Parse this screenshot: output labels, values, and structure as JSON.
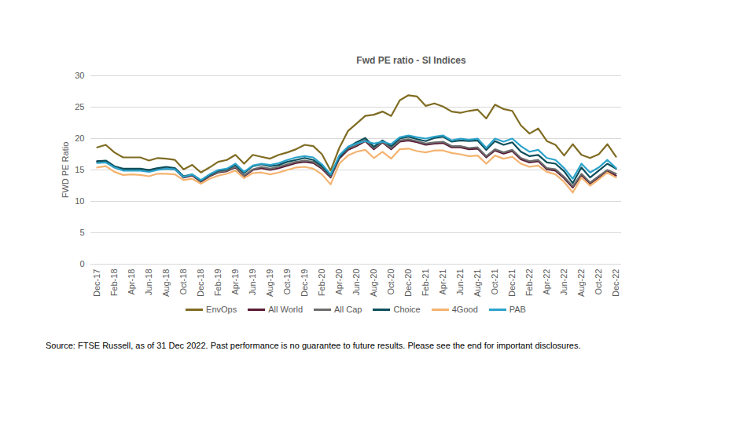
{
  "chart_data": {
    "type": "line",
    "title": "Fwd PE ratio - SI Indices",
    "y_label": "FWD PE Ratio",
    "caption": "Source: FTSE Russell, as of 31 Dec 2022. Past performance is no guarantee to future results. Please see the end for important disclosures.",
    "categories": [
      "Dec-17",
      null,
      "Feb-18",
      null,
      "Apr-18",
      null,
      "Jun-18",
      null,
      "Aug-18",
      null,
      "Oct-18",
      null,
      "Dec-18",
      null,
      "Feb-19",
      null,
      "Apr-19",
      null,
      "Jun-19",
      null,
      "Aug-19",
      null,
      "Oct-19",
      null,
      "Dec-19",
      null,
      "Feb-20",
      null,
      "Apr-20",
      null,
      "Jun-20",
      null,
      "Aug-20",
      null,
      "Oct-20",
      null,
      "Dec-20",
      null,
      "Feb-21",
      null,
      "Apr-21",
      null,
      "Jun-21",
      null,
      "Aug-21",
      null,
      "Oct-21",
      null,
      "Dec-21",
      null,
      "Feb-22",
      null,
      "Apr-22",
      null,
      "Jun-22",
      null,
      "Aug-22",
      null,
      "Oct-22",
      null,
      "Dec-22"
    ],
    "series": [
      {
        "name": "EnvOps",
        "color": "#7f6c22",
        "values": [
          18.6,
          19.0,
          17.8,
          17.0,
          17.0,
          17.0,
          16.5,
          16.9,
          16.8,
          16.6,
          15.1,
          15.8,
          14.6,
          15.4,
          16.3,
          16.6,
          17.4,
          16.0,
          17.4,
          17.1,
          16.8,
          17.4,
          17.8,
          18.3,
          19.0,
          18.8,
          17.5,
          14.9,
          18.5,
          21.2,
          22.4,
          23.6,
          23.8,
          24.3,
          23.6,
          26.1,
          26.9,
          26.7,
          25.2,
          25.6,
          25.1,
          24.3,
          24.1,
          24.4,
          24.6,
          23.2,
          25.4,
          24.7,
          24.4,
          22.1,
          20.8,
          21.6,
          19.6,
          19.0,
          17.3,
          19.1,
          17.4,
          16.9,
          17.5,
          19.1,
          17.1
        ]
      },
      {
        "name": "All World",
        "color": "#5a1a35",
        "values": [
          16.3,
          16.3,
          15.4,
          15.0,
          15.0,
          15.0,
          14.9,
          15.1,
          15.2,
          15.1,
          13.8,
          14.1,
          13.1,
          14.0,
          14.6,
          14.8,
          15.4,
          14.0,
          15.0,
          15.3,
          15.0,
          15.3,
          15.7,
          16.1,
          16.3,
          16.1,
          15.2,
          13.8,
          16.8,
          18.2,
          18.8,
          19.6,
          18.3,
          19.4,
          18.3,
          19.5,
          19.7,
          19.4,
          19.0,
          19.2,
          19.3,
          18.6,
          18.6,
          18.3,
          18.4,
          17.0,
          18.1,
          17.6,
          18.0,
          16.7,
          16.2,
          16.4,
          15.1,
          14.9,
          13.7,
          12.2,
          14.2,
          12.8,
          13.8,
          14.8,
          14.1
        ]
      },
      {
        "name": "All Cap",
        "color": "#6d6d6d",
        "values": [
          16.4,
          16.4,
          15.5,
          15.1,
          15.1,
          15.1,
          15.0,
          15.2,
          15.3,
          15.2,
          13.9,
          14.2,
          13.2,
          14.1,
          14.7,
          14.9,
          15.5,
          14.1,
          15.1,
          15.5,
          15.2,
          15.5,
          15.9,
          16.3,
          16.5,
          16.3,
          15.4,
          14.0,
          17.0,
          18.4,
          19.0,
          19.8,
          18.5,
          19.5,
          18.5,
          19.7,
          19.9,
          19.6,
          19.2,
          19.4,
          19.5,
          18.8,
          18.8,
          18.5,
          18.6,
          17.2,
          18.3,
          17.8,
          18.2,
          16.9,
          16.4,
          16.6,
          15.3,
          15.1,
          13.9,
          12.4,
          14.4,
          13.0,
          14.0,
          15.0,
          14.4
        ]
      },
      {
        "name": "Choice",
        "color": "#0d4f5c",
        "values": [
          16.4,
          16.5,
          15.6,
          15.2,
          15.2,
          15.2,
          15.0,
          15.3,
          15.5,
          15.3,
          14.0,
          14.3,
          13.3,
          14.2,
          14.9,
          15.1,
          15.8,
          14.5,
          15.6,
          15.9,
          15.6,
          15.8,
          16.3,
          16.6,
          16.9,
          16.6,
          15.6,
          14.2,
          17.0,
          18.6,
          19.4,
          20.1,
          18.7,
          19.7,
          18.8,
          20.0,
          20.3,
          19.9,
          19.6,
          20.1,
          20.3,
          19.5,
          19.7,
          19.6,
          19.7,
          18.2,
          19.6,
          19.0,
          19.4,
          17.9,
          17.2,
          17.4,
          16.2,
          16.0,
          14.8,
          12.9,
          15.4,
          13.8,
          14.9,
          16.0,
          15.2
        ]
      },
      {
        "name": "4Good",
        "color": "#f4b36f",
        "values": [
          15.4,
          15.6,
          14.7,
          14.2,
          14.3,
          14.2,
          14.0,
          14.4,
          14.4,
          14.3,
          13.4,
          13.6,
          12.8,
          13.6,
          14.1,
          14.4,
          14.9,
          13.7,
          14.5,
          14.6,
          14.3,
          14.6,
          15.0,
          15.4,
          15.5,
          15.2,
          14.3,
          12.7,
          16.0,
          17.3,
          17.9,
          18.2,
          16.9,
          17.9,
          16.8,
          18.3,
          18.4,
          18.0,
          17.8,
          18.1,
          18.1,
          17.7,
          17.5,
          17.2,
          17.3,
          16.0,
          17.3,
          16.8,
          17.1,
          16.0,
          15.5,
          15.7,
          14.7,
          14.3,
          13.1,
          11.4,
          13.8,
          12.5,
          13.5,
          14.6,
          13.8
        ]
      },
      {
        "name": "PAB",
        "color": "#2ba3cb",
        "values": [
          16.1,
          16.2,
          15.4,
          14.9,
          14.9,
          14.9,
          14.7,
          15.0,
          15.2,
          15.1,
          13.9,
          14.3,
          13.4,
          14.3,
          15.0,
          15.2,
          16.0,
          14.7,
          15.7,
          16.0,
          15.8,
          16.1,
          16.6,
          17.0,
          17.2,
          17.0,
          15.9,
          14.3,
          17.3,
          18.7,
          19.2,
          19.6,
          19.2,
          19.5,
          19.1,
          20.2,
          20.5,
          20.2,
          20.0,
          20.3,
          20.5,
          19.7,
          20.0,
          19.8,
          20.0,
          18.5,
          20.0,
          19.5,
          20.0,
          18.8,
          17.9,
          18.2,
          16.9,
          16.6,
          15.3,
          13.6,
          16.0,
          14.6,
          15.4,
          16.6,
          15.3
        ]
      }
    ],
    "ylim": [
      0,
      30
    ],
    "yticks": [
      0,
      5,
      10,
      15,
      20,
      25,
      30
    ],
    "grid": true,
    "legend": "bottom"
  }
}
